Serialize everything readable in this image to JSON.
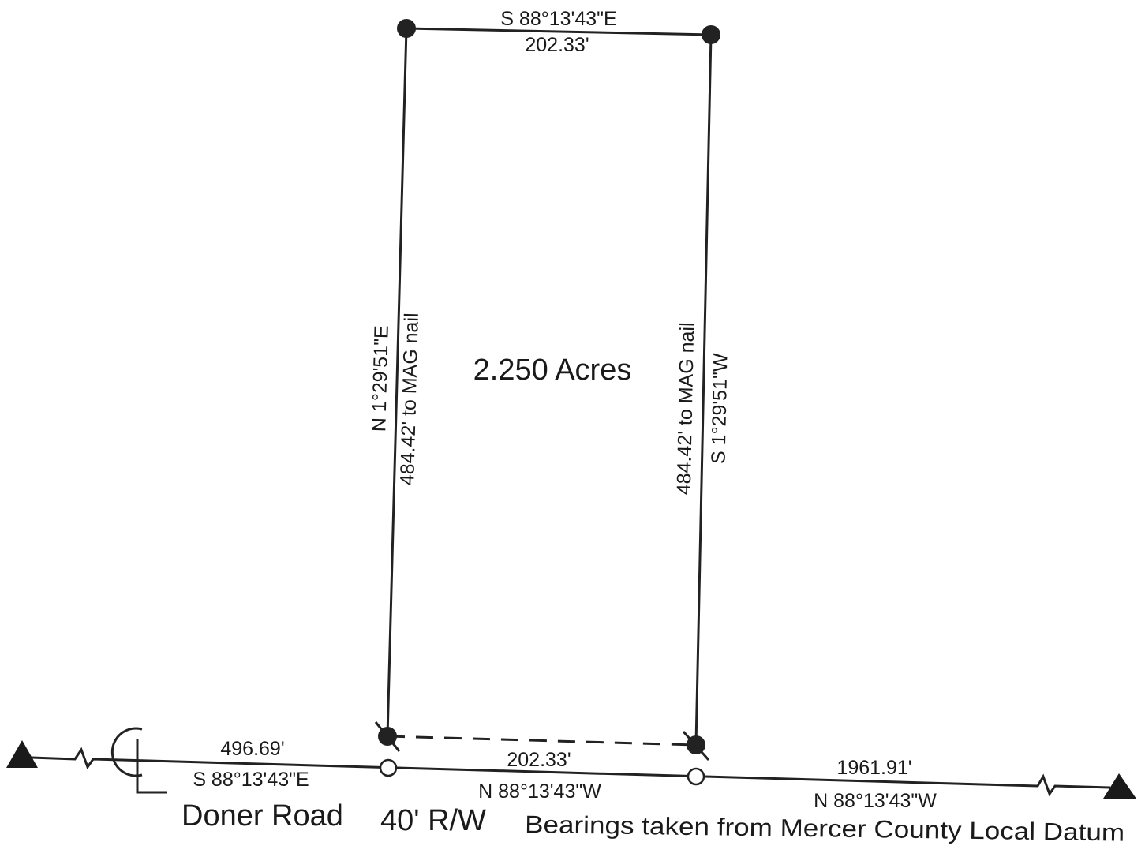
{
  "plat": {
    "area_label": "2.250 Acres",
    "north_line": {
      "bearing": "S 88°13'43\"E",
      "distance": "202.33'"
    },
    "west_line": {
      "bearing": "N 1°29'51\"E",
      "distance": "484.42' to MAG nail"
    },
    "east_line": {
      "bearing": "S 1°29'51\"W",
      "distance": "484.42' to MAG nail"
    },
    "south_line": {
      "distance": "202.33'"
    },
    "centerline": {
      "west_segment": {
        "distance": "496.69'",
        "bearing": "S 88°13'43\"E"
      },
      "middle_segment": {
        "distance": "202.33'",
        "bearing": "N 88°13'43\"W"
      },
      "east_segment": {
        "distance": "1961.91'",
        "bearing": "N 88°13'43\"W"
      }
    },
    "road_label": "Doner Road",
    "right_of_way": "40' R/W",
    "datum_note": "Bearings taken from Mercer County Local Datum"
  },
  "colors": {
    "ink": "#222222",
    "paper": "#ffffff"
  }
}
